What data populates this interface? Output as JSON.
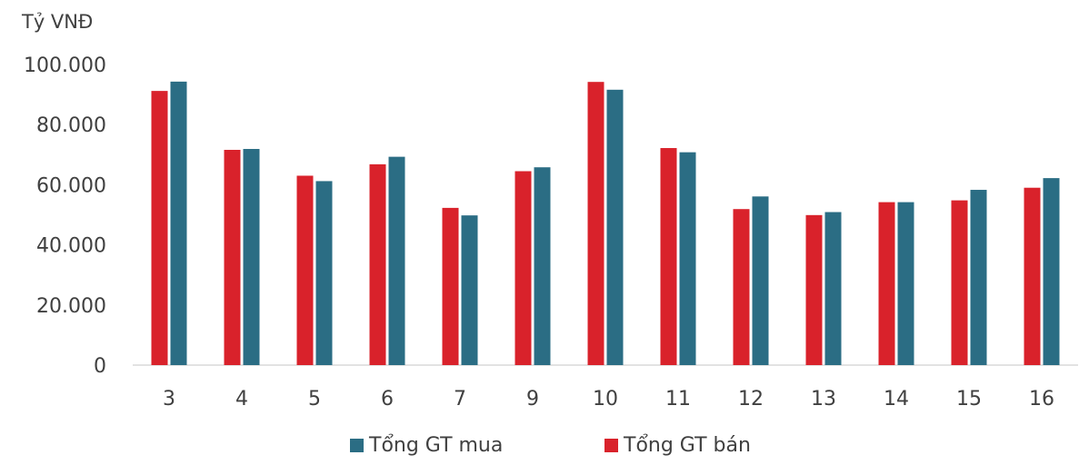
{
  "chart_data": {
    "type": "bar",
    "ylabel": "Tỷ VNĐ",
    "categories": [
      "3",
      "4",
      "5",
      "6",
      "7",
      "9",
      "10",
      "11",
      "12",
      "13",
      "14",
      "15",
      "16"
    ],
    "series": [
      {
        "name": "Tổng GT bán",
        "color": "#d9222b",
        "values": [
          91200,
          71600,
          63000,
          66800,
          52300,
          64500,
          94200,
          72200,
          51900,
          49900,
          54200,
          54800,
          59000
        ]
      },
      {
        "name": "Tổng GT mua",
        "color": "#2b6d84",
        "values": [
          94300,
          71900,
          61200,
          69300,
          49800,
          65800,
          91600,
          70800,
          56100,
          50900,
          54200,
          58300,
          62200
        ]
      }
    ],
    "ylim": [
      0,
      100000
    ],
    "yticks": [
      0,
      20000,
      40000,
      60000,
      80000,
      100000
    ],
    "ytick_labels": [
      "0",
      "20.000",
      "40.000",
      "60.000",
      "80.000",
      "100.000"
    ],
    "grid": false,
    "legend_position": "bottom",
    "legend_order": [
      "Tổng GT mua",
      "Tổng GT bán"
    ]
  }
}
